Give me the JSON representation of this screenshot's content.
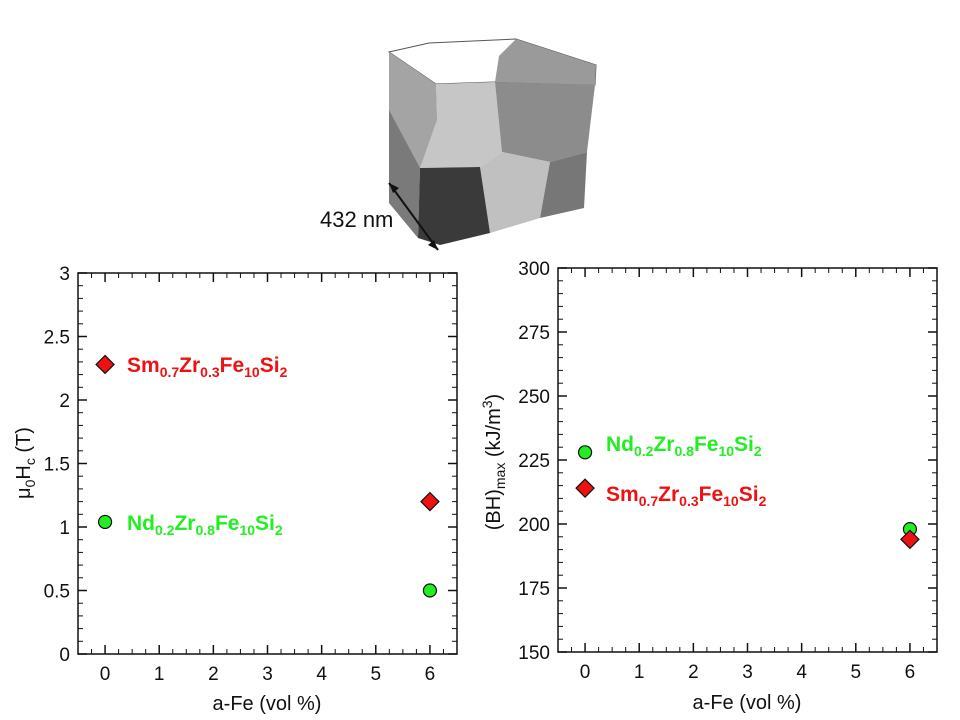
{
  "colors": {
    "nd": "#22ee22",
    "sm": "#ee1111",
    "axis": "#111111"
  },
  "cube": {
    "scale_label": "432 nm",
    "icon": "voronoi-grain-cube"
  },
  "chart_data": [
    {
      "type": "scatter",
      "title": "",
      "xlabel": "a-Fe (vol %)",
      "ylabel": "μ0Hc (T)",
      "ylabel_parts": [
        "μ",
        "0",
        "H",
        "c",
        " (T)"
      ],
      "xlim": [
        -0.5,
        6.5
      ],
      "ylim": [
        0,
        3
      ],
      "xticks": [
        "0",
        "1",
        "2",
        "3",
        "4",
        "5",
        "6"
      ],
      "yticks": [
        "0",
        "0.5",
        "1",
        "1.5",
        "2",
        "2.5",
        "3"
      ],
      "series": [
        {
          "name": "Sm0.7Zr0.3Fe10Si2",
          "marker": "diamond",
          "color": "#ee1111",
          "label_parts": [
            "Sm",
            "0.7",
            "Zr",
            "0.3",
            "Fe",
            "10",
            "Si",
            "2"
          ],
          "x": [
            0,
            6
          ],
          "y": [
            2.28,
            1.2
          ]
        },
        {
          "name": "Nd0.2Zr0.8Fe10Si2",
          "marker": "circle",
          "color": "#22ee22",
          "label_parts": [
            "Nd",
            "0.2",
            "Zr",
            "0.8",
            "Fe",
            "10",
            "Si",
            "2"
          ],
          "x": [
            0,
            6
          ],
          "y": [
            1.04,
            0.5
          ]
        }
      ]
    },
    {
      "type": "scatter",
      "title": "",
      "xlabel": "a-Fe (vol %)",
      "ylabel": "(BH)max (kJ/m3)",
      "ylabel_parts": [
        "(BH)",
        "max",
        " (kJ/m",
        "3",
        ")"
      ],
      "xlim": [
        -0.5,
        6.5
      ],
      "ylim": [
        150,
        300
      ],
      "xticks": [
        "0",
        "1",
        "2",
        "3",
        "4",
        "5",
        "6"
      ],
      "yticks": [
        "150",
        "175",
        "200",
        "225",
        "250",
        "275",
        "300"
      ],
      "series": [
        {
          "name": "Nd0.2Zr0.8Fe10Si2",
          "marker": "circle",
          "color": "#22ee22",
          "label_parts": [
            "Nd",
            "0.2",
            "Zr",
            "0.8",
            "Fe",
            "10",
            "Si",
            "2"
          ],
          "x": [
            0,
            6
          ],
          "y": [
            228,
            198
          ]
        },
        {
          "name": "Sm0.7Zr0.3Fe10Si2",
          "marker": "diamond",
          "color": "#ee1111",
          "label_parts": [
            "Sm",
            "0.7",
            "Zr",
            "0.3",
            "Fe",
            "10",
            "Si",
            "2"
          ],
          "x": [
            0,
            6
          ],
          "y": [
            214,
            194
          ]
        }
      ]
    }
  ]
}
